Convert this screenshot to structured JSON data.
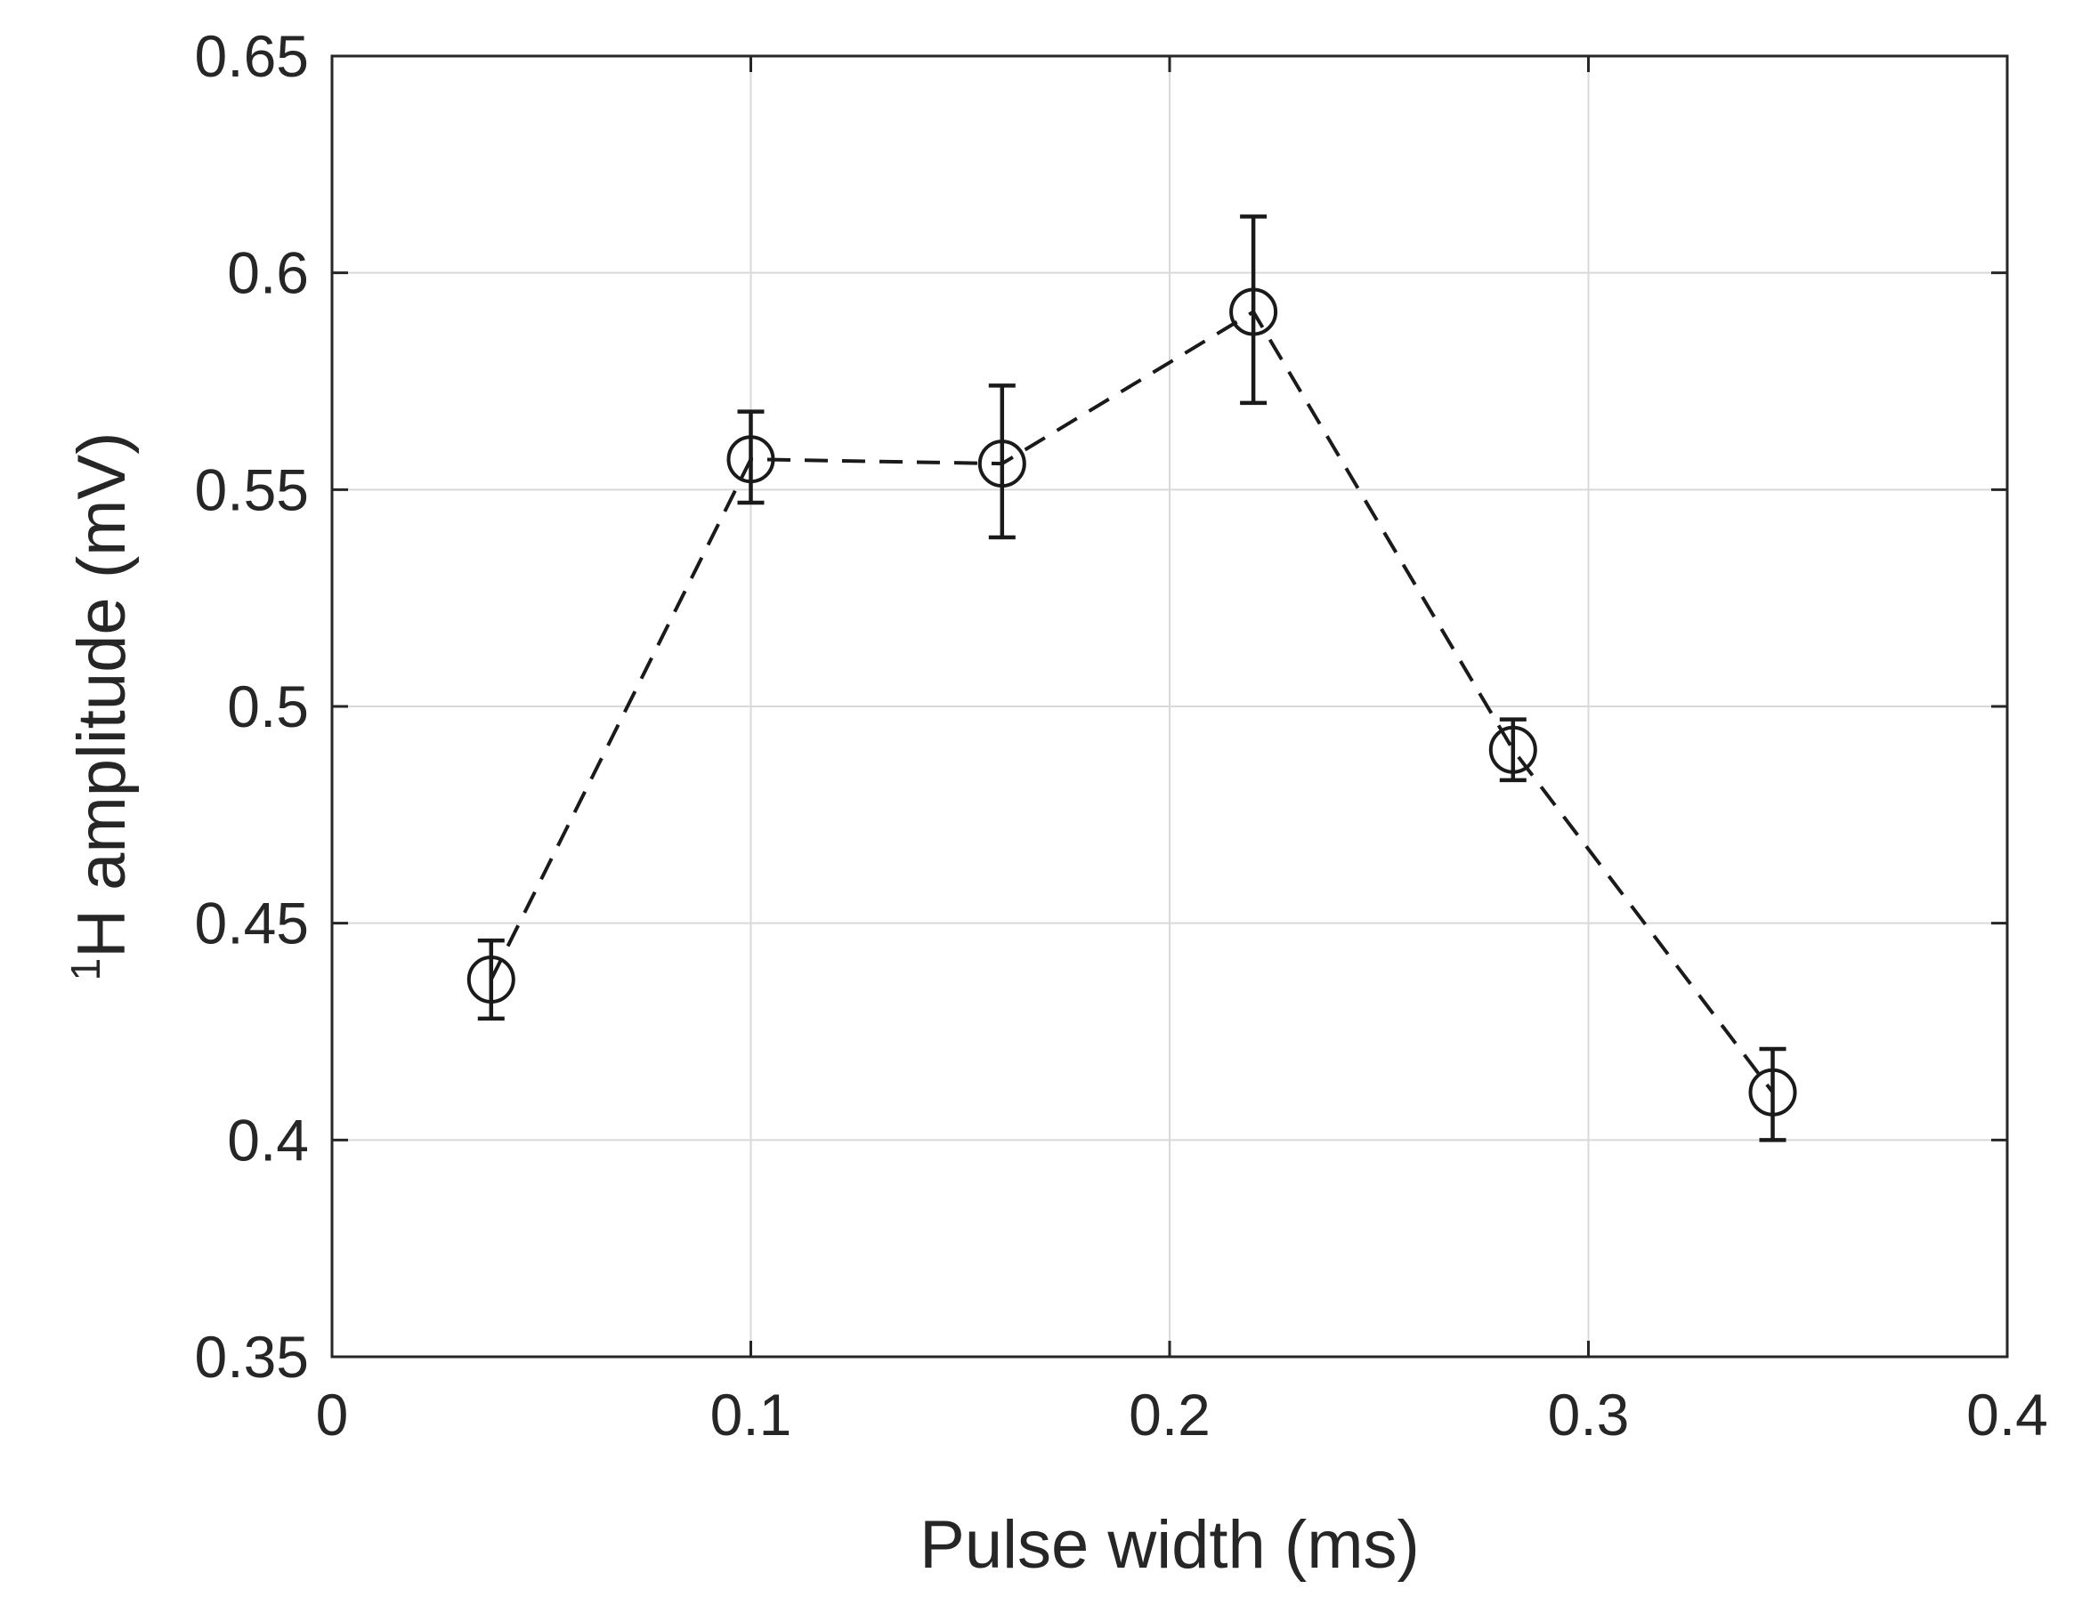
{
  "chart_data": {
    "type": "scatter",
    "xlabel": "Pulse width (ms)",
    "ylabel": {
      "superscript": "1",
      "text": "H amplitude (mV)"
    },
    "xlim": [
      0,
      0.4
    ],
    "ylim": [
      0.35,
      0.65
    ],
    "xticks": [
      0,
      0.1,
      0.2,
      0.3,
      0.4
    ],
    "xtick_labels": [
      "0",
      "0.1",
      "0.2",
      "0.3",
      "0.4"
    ],
    "yticks": [
      0.35,
      0.4,
      0.45,
      0.5,
      0.55,
      0.6,
      0.65
    ],
    "ytick_labels": [
      "0.35",
      "0.4",
      "0.45",
      "0.5",
      "0.55",
      "0.6",
      "0.65"
    ],
    "grid": true,
    "line_style": "dashed",
    "marker": "open-circle",
    "color": "#1a1a1a",
    "series": [
      {
        "x": [
          0.038,
          0.1,
          0.16,
          0.22,
          0.282,
          0.344
        ],
        "y": [
          0.437,
          0.557,
          0.556,
          0.591,
          0.49,
          0.411
        ],
        "err_low": [
          0.428,
          0.547,
          0.539,
          0.57,
          0.483,
          0.4
        ],
        "err_high": [
          0.446,
          0.568,
          0.574,
          0.613,
          0.497,
          0.421
        ]
      }
    ]
  }
}
